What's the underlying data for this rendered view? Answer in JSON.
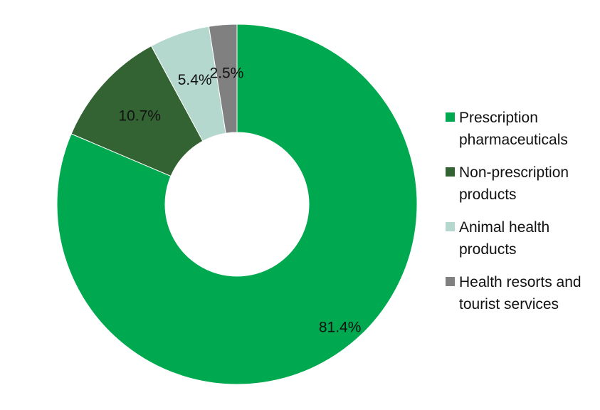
{
  "chart_data": {
    "type": "pie",
    "donut": true,
    "categories": [
      "Prescription pharmaceuticals",
      "Non-prescription products",
      "Animal health products",
      "Health resorts and tourist services"
    ],
    "values": [
      81.4,
      10.7,
      5.4,
      2.5
    ],
    "value_labels": [
      "81.4%",
      "10.7%",
      "5.4%",
      "2.5%"
    ],
    "colors": [
      "#00a94f",
      "#346333",
      "#b4d8cd",
      "#808080"
    ],
    "legend_position": "right"
  },
  "legend": {
    "items": [
      {
        "label_line1": "Prescription",
        "label_line2": "pharmaceuticals",
        "color": "#00a94f"
      },
      {
        "label_line1": "Non-prescription",
        "label_line2": "products",
        "color": "#346333"
      },
      {
        "label_line1": "Animal health",
        "label_line2": "products",
        "color": "#b4d8cd"
      },
      {
        "label_line1": "Health resorts and",
        "label_line2": "tourist services",
        "color": "#808080"
      }
    ]
  }
}
